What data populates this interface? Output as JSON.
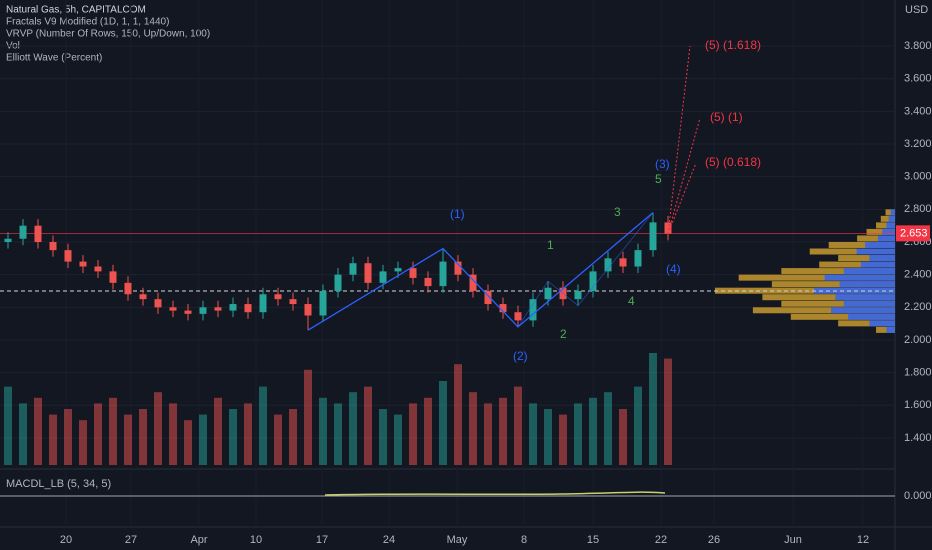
{
  "header": {
    "lines": [
      "Natural Gas, 5h, CAPITALCOM",
      "Fractals V9 Modified (1D, 1, 1, 1440)",
      "VRVP (Number Of Rows, 150, Up/Down, 100)",
      "Vol",
      "Elliott Wave (Percent)"
    ]
  },
  "chart_data": {
    "type": "candlestick",
    "axis_unit": "USD",
    "open": [
      2.6,
      2.62,
      2.7,
      2.6,
      2.55,
      2.48,
      2.45,
      2.42,
      2.35,
      2.28,
      2.25,
      2.2,
      2.18,
      2.16,
      2.2,
      2.18,
      2.22,
      2.17,
      2.28,
      2.25,
      2.22,
      2.15,
      2.3,
      2.4,
      2.47,
      2.35,
      2.42,
      2.44,
      2.38,
      2.33,
      2.48,
      2.4,
      2.3,
      2.22,
      2.17,
      2.12,
      2.25,
      2.32,
      2.25,
      2.3,
      2.42,
      2.5,
      2.45,
      2.55,
      2.72
    ],
    "high": [
      2.66,
      2.74,
      2.74,
      2.64,
      2.59,
      2.52,
      2.49,
      2.46,
      2.39,
      2.32,
      2.29,
      2.24,
      2.22,
      2.24,
      2.24,
      2.26,
      2.26,
      2.32,
      2.32,
      2.29,
      2.26,
      2.34,
      2.44,
      2.51,
      2.51,
      2.46,
      2.48,
      2.48,
      2.42,
      2.56,
      2.52,
      2.44,
      2.34,
      2.26,
      2.21,
      2.29,
      2.36,
      2.36,
      2.34,
      2.46,
      2.54,
      2.54,
      2.59,
      2.78,
      2.76
    ],
    "low": [
      2.56,
      2.58,
      2.56,
      2.51,
      2.44,
      2.41,
      2.38,
      2.31,
      2.24,
      2.21,
      2.16,
      2.14,
      2.12,
      2.12,
      2.14,
      2.14,
      2.13,
      2.13,
      2.21,
      2.18,
      2.06,
      2.11,
      2.26,
      2.36,
      2.31,
      2.31,
      2.38,
      2.34,
      2.29,
      2.29,
      2.36,
      2.26,
      2.18,
      2.13,
      2.08,
      2.08,
      2.21,
      2.21,
      2.21,
      2.26,
      2.38,
      2.41,
      2.41,
      2.51,
      2.61
    ],
    "close": [
      2.62,
      2.7,
      2.6,
      2.55,
      2.48,
      2.45,
      2.42,
      2.35,
      2.28,
      2.25,
      2.2,
      2.18,
      2.16,
      2.2,
      2.18,
      2.22,
      2.17,
      2.28,
      2.25,
      2.22,
      2.15,
      2.3,
      2.4,
      2.47,
      2.35,
      2.42,
      2.44,
      2.38,
      2.33,
      2.48,
      2.4,
      2.3,
      2.22,
      2.17,
      2.12,
      2.25,
      2.32,
      2.25,
      2.3,
      2.42,
      2.5,
      2.45,
      2.55,
      2.72,
      2.65
    ],
    "volume": [
      70,
      55,
      60,
      45,
      50,
      40,
      55,
      60,
      45,
      50,
      65,
      55,
      40,
      45,
      60,
      50,
      55,
      70,
      45,
      50,
      85,
      60,
      55,
      65,
      70,
      50,
      45,
      55,
      60,
      75,
      90,
      65,
      55,
      60,
      70,
      55,
      50,
      45,
      55,
      60,
      65,
      50,
      70,
      100,
      95
    ],
    "ylim": [
      1.216,
      4.082
    ],
    "yticks": [
      {
        "value": 1.4,
        "label": "1.400"
      },
      {
        "value": 1.6,
        "label": "1.600"
      },
      {
        "value": 1.8,
        "label": "1.800"
      },
      {
        "value": 2.0,
        "label": "2.000"
      },
      {
        "value": 2.2,
        "label": "2.200"
      },
      {
        "value": 2.4,
        "label": "2.400"
      },
      {
        "value": 2.6,
        "label": "2.600"
      },
      {
        "value": 2.8,
        "label": "2.800"
      },
      {
        "value": 3.0,
        "label": "3.000"
      },
      {
        "value": 3.2,
        "label": "3.200"
      },
      {
        "value": 3.4,
        "label": "3.400"
      },
      {
        "value": 3.6,
        "label": "3.600"
      },
      {
        "value": 3.8,
        "label": "3.800"
      }
    ],
    "last_price": {
      "value": 2.653,
      "label": "2.653"
    },
    "x_labels": [
      "20",
      "27",
      "Apr",
      "10",
      "17",
      "24",
      "May",
      "8",
      "15",
      "22",
      "26",
      "Jun",
      "12"
    ],
    "volume_profile": {
      "prices": [
        2.06,
        2.1,
        2.14,
        2.18,
        2.22,
        2.26,
        2.3,
        2.34,
        2.38,
        2.42,
        2.46,
        2.5,
        2.54,
        2.58,
        2.62,
        2.66,
        2.7,
        2.74,
        2.78
      ],
      "values": [
        20,
        60,
        110,
        150,
        120,
        140,
        190,
        130,
        165,
        120,
        80,
        60,
        90,
        70,
        40,
        30,
        20,
        15,
        10
      ]
    },
    "annotations": [
      {
        "text": "(1)",
        "color": "#2962ff"
      },
      {
        "text": "(2)",
        "color": "#2962ff"
      },
      {
        "text": "(3)",
        "color": "#2962ff"
      },
      {
        "text": "(4)",
        "color": "#2962ff"
      },
      {
        "text": "1",
        "color": "#4caf50"
      },
      {
        "text": "2",
        "color": "#4caf50"
      },
      {
        "text": "3",
        "color": "#4caf50"
      },
      {
        "text": "4",
        "color": "#4caf50"
      },
      {
        "text": "5",
        "color": "#4caf50"
      },
      {
        "text": "(5) (1.618)",
        "color": "#f23645"
      },
      {
        "text": "(5) (1)",
        "color": "#f23645"
      },
      {
        "text": "(5) (0.618)",
        "color": "#f23645"
      }
    ],
    "macd": {
      "title": "MACDL_LB (5, 34, 5)",
      "yticks": [
        {
          "value": 0,
          "label": "0.000"
        }
      ]
    },
    "colors": {
      "up": "#26a69a",
      "down": "#ef5350"
    }
  }
}
